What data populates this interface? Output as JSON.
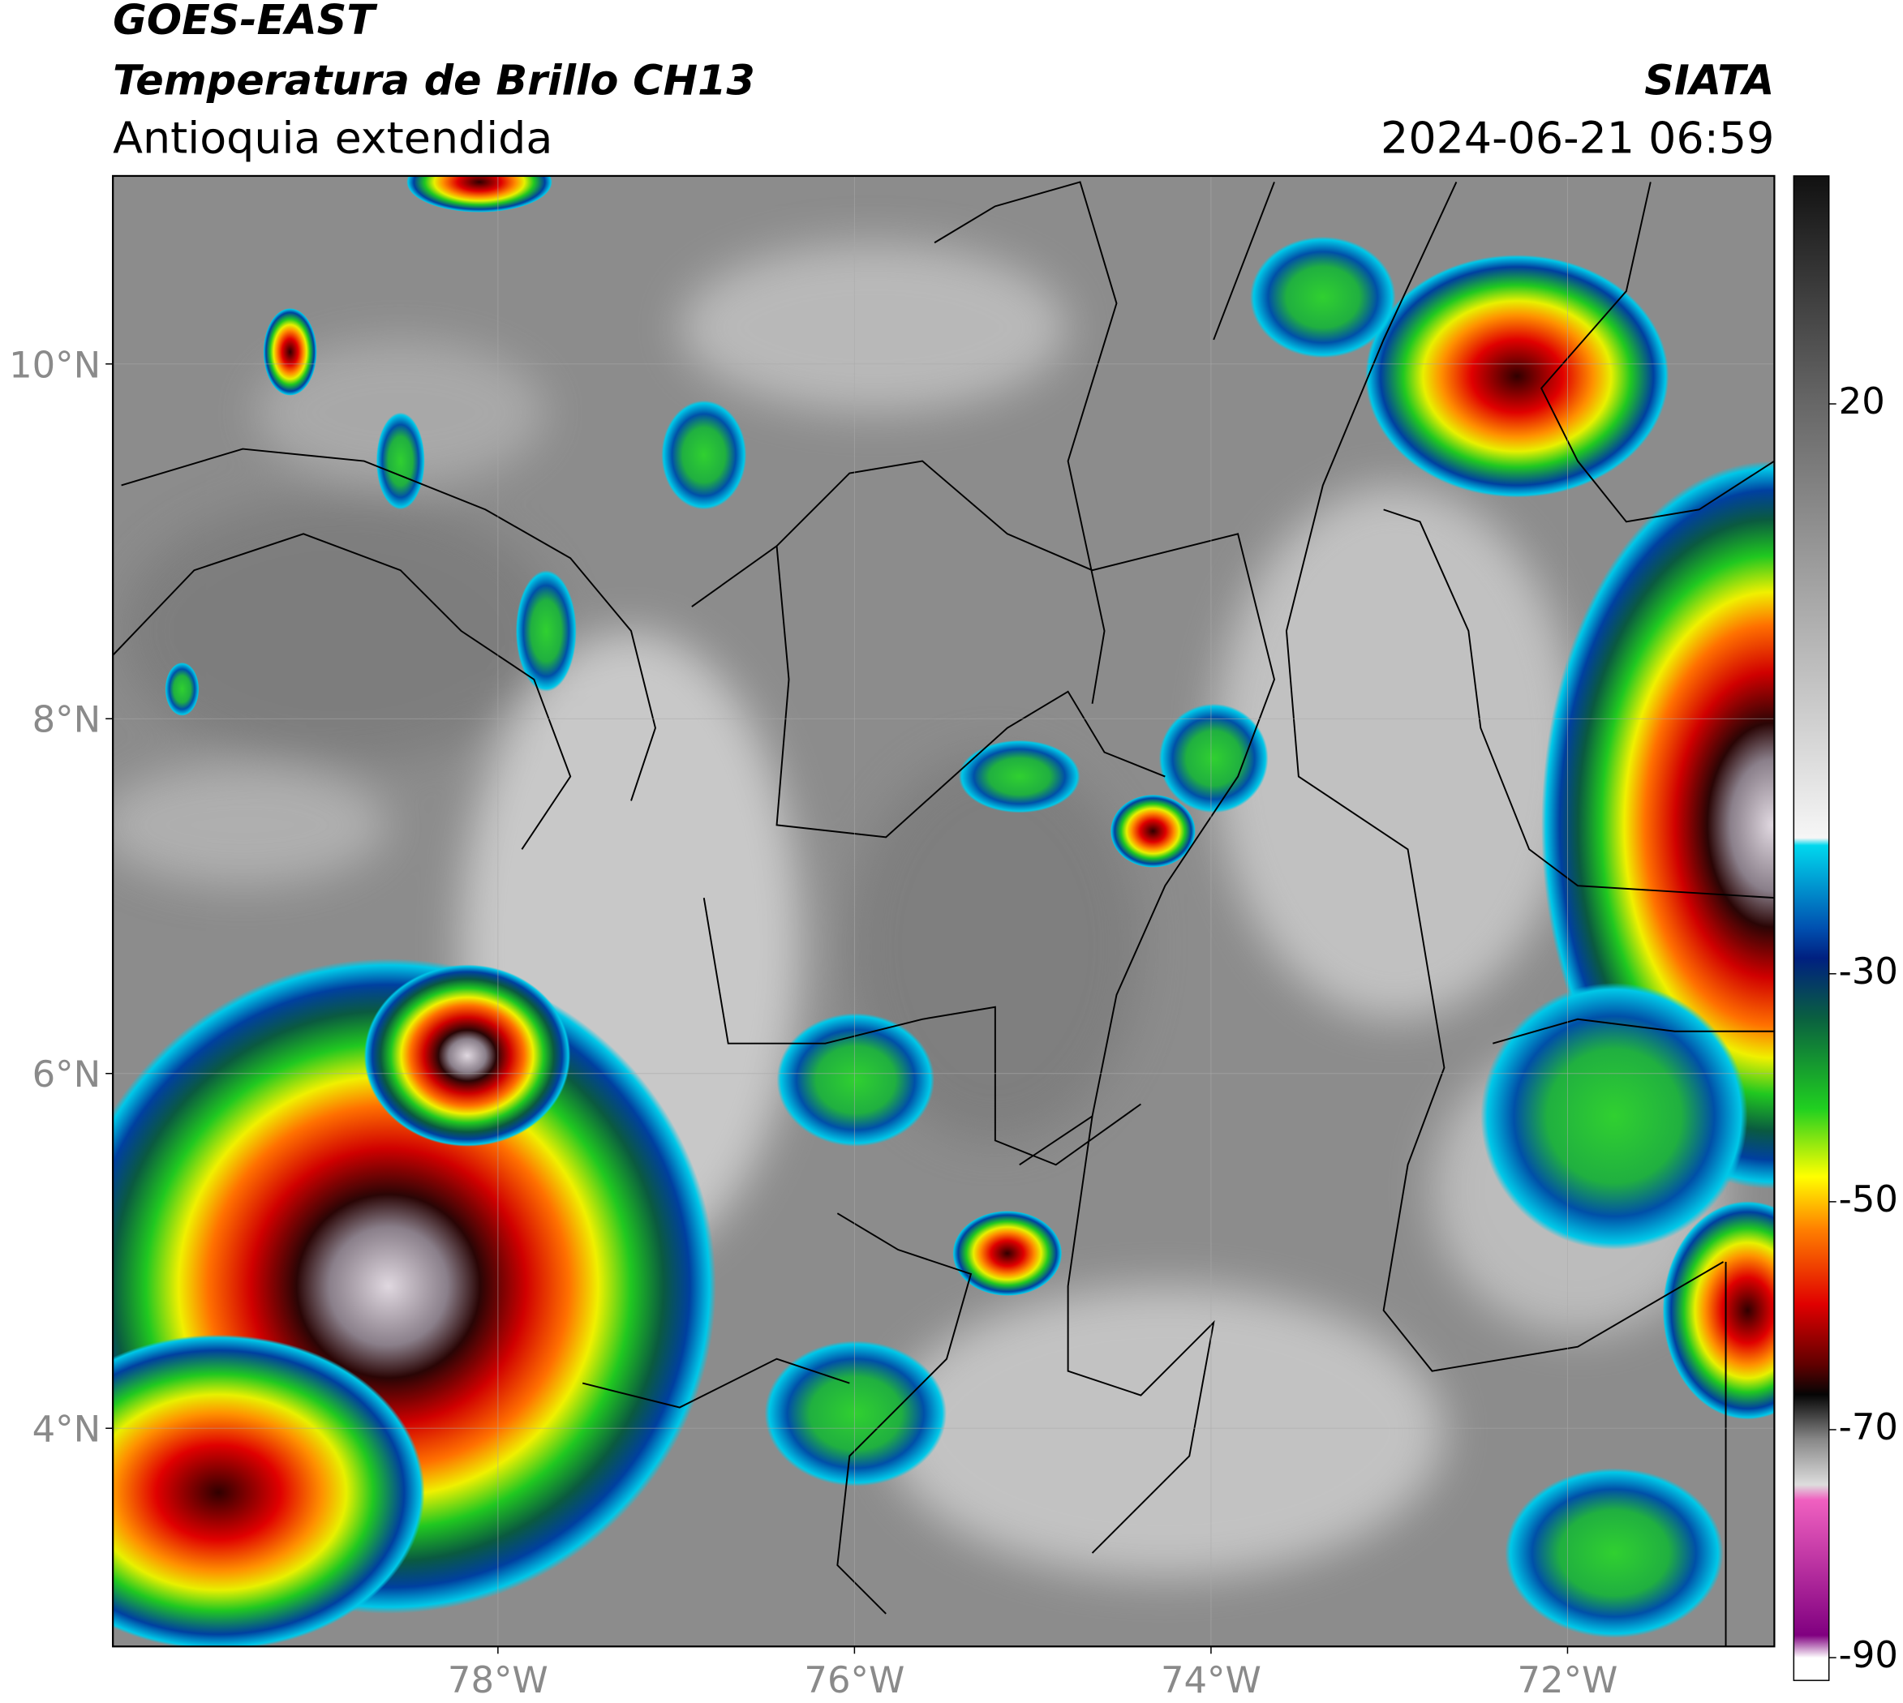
{
  "header": {
    "title": "GOES-EAST",
    "subtitle": "Temperatura de Brillo CH13",
    "region": "Antioquia extendida",
    "source": "SIATA",
    "datetime": "2024-06-21 06:59"
  },
  "map": {
    "xlim": [
      -80.16,
      -70.84
    ],
    "ylim": [
      2.77,
      11.06
    ],
    "xticks": [
      {
        "value": -78,
        "label": "78°W"
      },
      {
        "value": -76,
        "label": "76°W"
      },
      {
        "value": -74,
        "label": "74°W"
      },
      {
        "value": -72,
        "label": "72°W"
      }
    ],
    "yticks": [
      {
        "value": 10,
        "label": "10°N"
      },
      {
        "value": 8,
        "label": "8°N"
      },
      {
        "value": 6,
        "label": "6°N"
      },
      {
        "value": 4,
        "label": "4°N"
      }
    ],
    "grid": true
  },
  "colorbar": {
    "clim": [
      -92,
      40
    ],
    "ticks": [
      20,
      -30,
      -50,
      -70,
      -90
    ]
  }
}
